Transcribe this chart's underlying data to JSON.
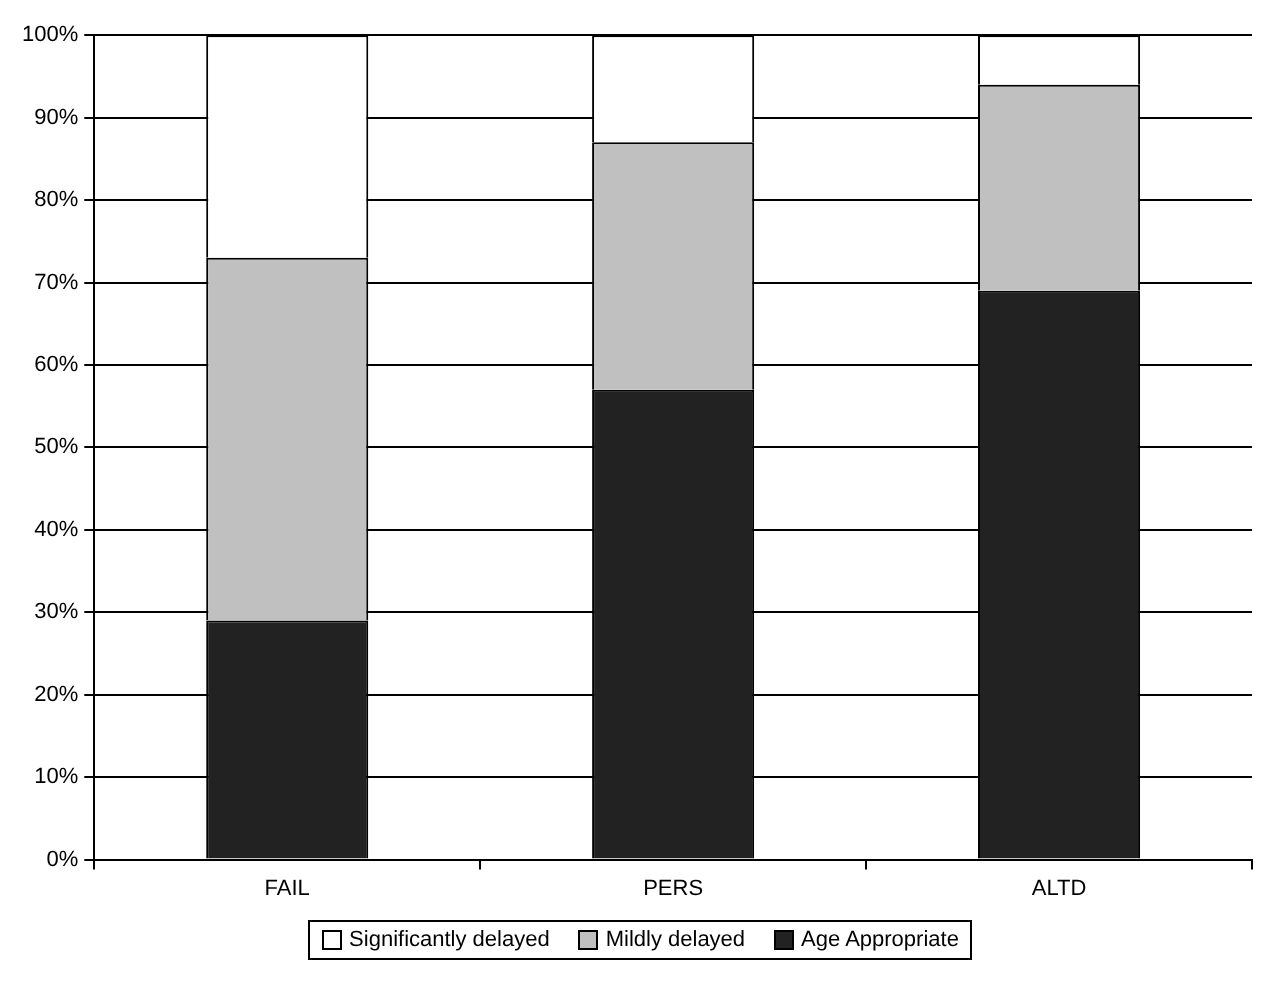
{
  "chart_data": {
    "type": "bar",
    "stacked": true,
    "categories": [
      "FAIL",
      "PERS",
      "ALTD"
    ],
    "series": [
      {
        "name": "Age Appropriate",
        "color": "#222222",
        "values": [
          29,
          57,
          69
        ]
      },
      {
        "name": "Mildly delayed",
        "color": "#c0c0c0",
        "values": [
          44,
          30,
          25
        ]
      },
      {
        "name": "Significantly delayed",
        "color": "#ffffff",
        "values": [
          27,
          13,
          6
        ]
      }
    ],
    "ylim": [
      0,
      100
    ],
    "yticks": [
      {
        "value": 0,
        "label": "0%"
      },
      {
        "value": 10,
        "label": "10%"
      },
      {
        "value": 20,
        "label": "20%"
      },
      {
        "value": 30,
        "label": "30%"
      },
      {
        "value": 40,
        "label": "40%"
      },
      {
        "value": 50,
        "label": "50%"
      },
      {
        "value": 60,
        "label": "60%"
      },
      {
        "value": 70,
        "label": "70%"
      },
      {
        "value": 80,
        "label": "80%"
      },
      {
        "value": 90,
        "label": "90%"
      },
      {
        "value": 100,
        "label": "100%"
      }
    ],
    "grid": "y",
    "legend": "bottom"
  }
}
